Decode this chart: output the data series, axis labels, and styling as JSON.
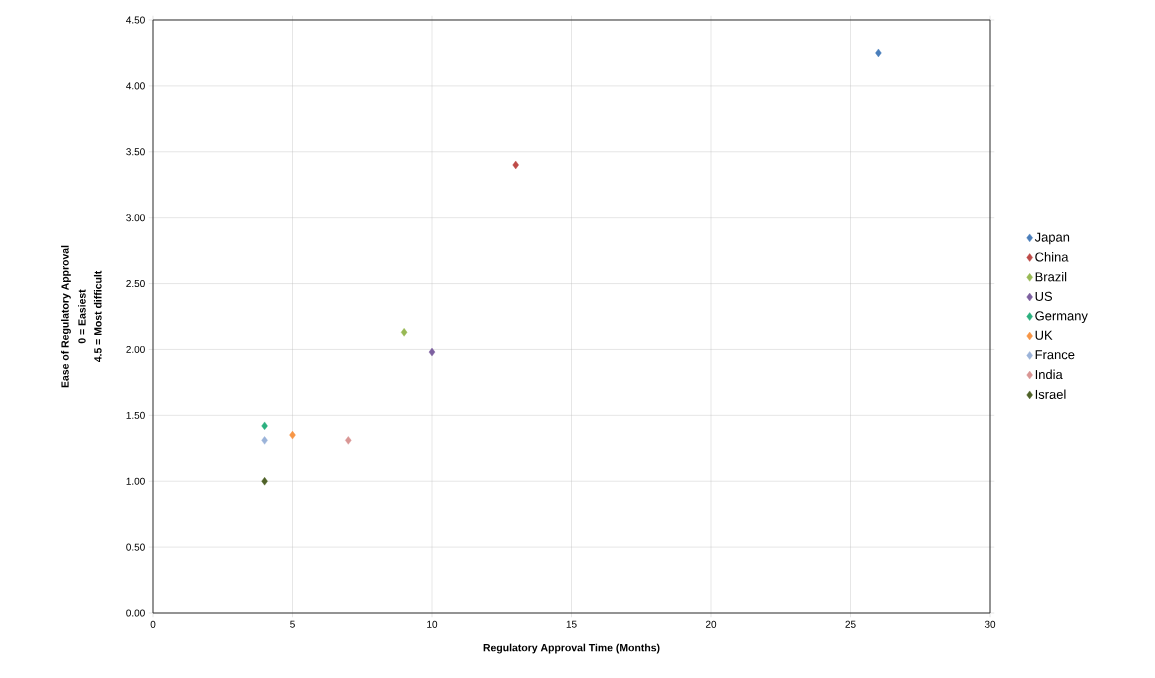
{
  "chart_data": {
    "type": "scatter",
    "xlabel": "Regulatory Approval Time (Months)",
    "annotations": [
      "Ease of Regulatory Approval",
      "0 = Easiest",
      "4.5 = Most difficult"
    ],
    "series": [
      {
        "name": "Japan",
        "color": "#4a7ebb",
        "x": [
          26
        ],
        "values": [
          4.25
        ]
      },
      {
        "name": "China",
        "color": "#be4b48",
        "x": [
          13
        ],
        "values": [
          3.4
        ]
      },
      {
        "name": "Brazil",
        "color": "#98b954",
        "x": [
          9
        ],
        "values": [
          2.13
        ]
      },
      {
        "name": "US",
        "color": "#7d60a0",
        "x": [
          10
        ],
        "values": [
          1.98
        ]
      },
      {
        "name": "Germany",
        "color": "#2bb07f",
        "x": [
          4
        ],
        "values": [
          1.42
        ]
      },
      {
        "name": "UK",
        "color": "#f79646",
        "x": [
          5
        ],
        "values": [
          1.35
        ]
      },
      {
        "name": "France",
        "color": "#9bb3d9",
        "x": [
          4
        ],
        "values": [
          1.31
        ]
      },
      {
        "name": "India",
        "color": "#d99694",
        "x": [
          7
        ],
        "values": [
          1.31
        ]
      },
      {
        "name": "Israel",
        "color": "#4f6228",
        "x": [
          4
        ],
        "values": [
          1.0
        ]
      }
    ],
    "xlim": [
      0,
      30
    ],
    "xticks": [
      0,
      5,
      10,
      15,
      20,
      25,
      30
    ],
    "ylim": [
      0,
      4.5
    ],
    "yticks": [
      {
        "value": 0,
        "label": "0.00"
      },
      {
        "value": 0.5,
        "label": "0.50"
      },
      {
        "value": 1,
        "label": "1.00"
      },
      {
        "value": 1.5,
        "label": "1.50"
      },
      {
        "value": 2,
        "label": "2.00"
      },
      {
        "value": 2.5,
        "label": "2.50"
      },
      {
        "value": 3,
        "label": "3.00"
      },
      {
        "value": 3.5,
        "label": "3.50"
      },
      {
        "value": 4,
        "label": "4.00"
      },
      {
        "value": 4.5,
        "label": "4.50"
      }
    ],
    "grid": true,
    "legend": "right",
    "marker": "diamond"
  }
}
